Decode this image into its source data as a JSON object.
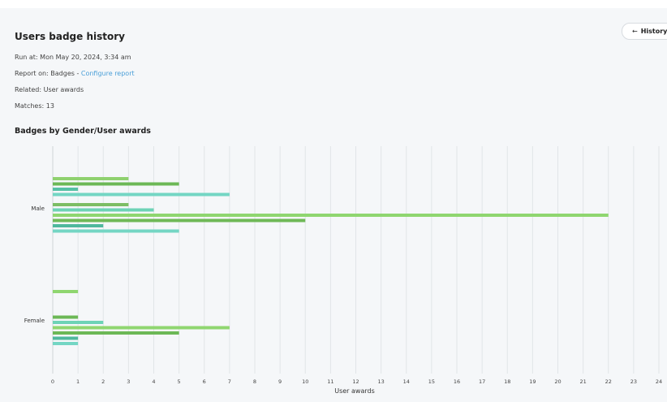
{
  "report": {
    "title": "Users badge history",
    "run_at": "Run at: Mon May 20, 2024, 3:34 am",
    "report_on_prefix": "Report on: Badges - ",
    "configure_link": "Configure report",
    "related": "Related: User awards",
    "matches": "Matches: 13"
  },
  "history_button": {
    "label": "History",
    "icon": "arrow-left-icon"
  },
  "chart_data": {
    "type": "bar",
    "orientation": "horizontal",
    "title": "Badges by Gender/User awards",
    "xlabel": "User awards",
    "ylabel": "",
    "xlim": [
      0,
      24
    ],
    "x_ticks": [
      0,
      1,
      2,
      3,
      4,
      5,
      6,
      7,
      8,
      9,
      10,
      11,
      12,
      13,
      14,
      15,
      16,
      17,
      18,
      19,
      20,
      21,
      22,
      23,
      24
    ],
    "grid": "vertical",
    "legend": "none",
    "categories": [
      "Male",
      "Female"
    ],
    "groups": [
      {
        "category": "Male",
        "bars": [
          {
            "value": 3,
            "color": "#8fd16f"
          },
          {
            "value": 5,
            "color": "#6cb856"
          },
          {
            "value": 1,
            "color": "#56c0a6"
          },
          {
            "value": 7,
            "color": "#74d6c4"
          },
          {
            "value": 3,
            "color": "#7cbd64"
          },
          {
            "value": 4,
            "color": "#6dd3b6"
          },
          {
            "value": 22,
            "color": "#8fd670"
          },
          {
            "value": 10,
            "color": "#6fb857"
          },
          {
            "value": 2,
            "color": "#4fb89d"
          },
          {
            "value": 5,
            "color": "#74d6c4"
          }
        ]
      },
      {
        "category": "Female",
        "bars": [
          {
            "value": 1,
            "color": "#8fd670"
          },
          {
            "value": 1,
            "color": "#6cb856"
          },
          {
            "value": 2,
            "color": "#6dd3b6"
          },
          {
            "value": 7,
            "color": "#8fd670"
          },
          {
            "value": 5,
            "color": "#6cb856"
          },
          {
            "value": 1,
            "color": "#4fb89d"
          },
          {
            "value": 1,
            "color": "#74d6c4"
          }
        ]
      }
    ]
  }
}
